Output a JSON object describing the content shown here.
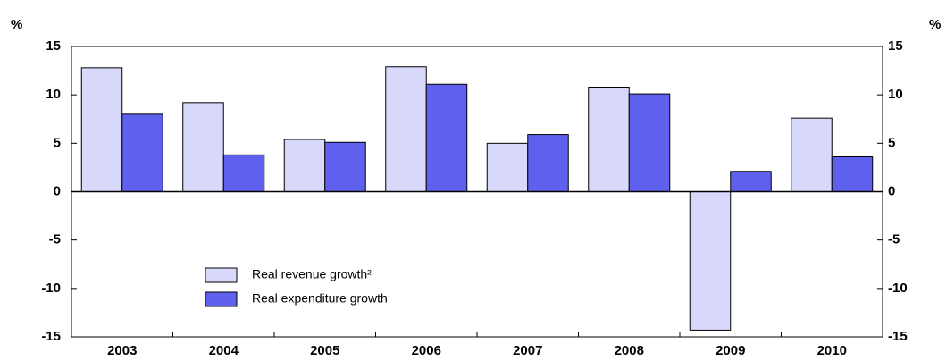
{
  "chart_data": {
    "type": "bar",
    "ylabel": "%",
    "y2label": "%",
    "categories": [
      "2003",
      "2004",
      "2005",
      "2006",
      "2007",
      "2008",
      "2009",
      "2010"
    ],
    "series": [
      {
        "name": "Real revenue growth²",
        "color": "#d8d8fa",
        "values": [
          12.8,
          9.2,
          5.4,
          12.9,
          5.0,
          10.8,
          -14.3,
          7.6
        ]
      },
      {
        "name": "Real expenditure growth",
        "color": "#6060ee",
        "values": [
          8.0,
          3.8,
          5.1,
          11.1,
          5.9,
          10.1,
          2.1,
          3.6
        ]
      }
    ],
    "ylim": [
      -15,
      15
    ],
    "yticks": [
      -15,
      -10,
      -5,
      0,
      5,
      10,
      15
    ],
    "y2lim": [
      -15,
      15
    ],
    "y2ticks": [
      -15,
      -10,
      -5,
      0,
      5,
      10,
      15
    ]
  }
}
